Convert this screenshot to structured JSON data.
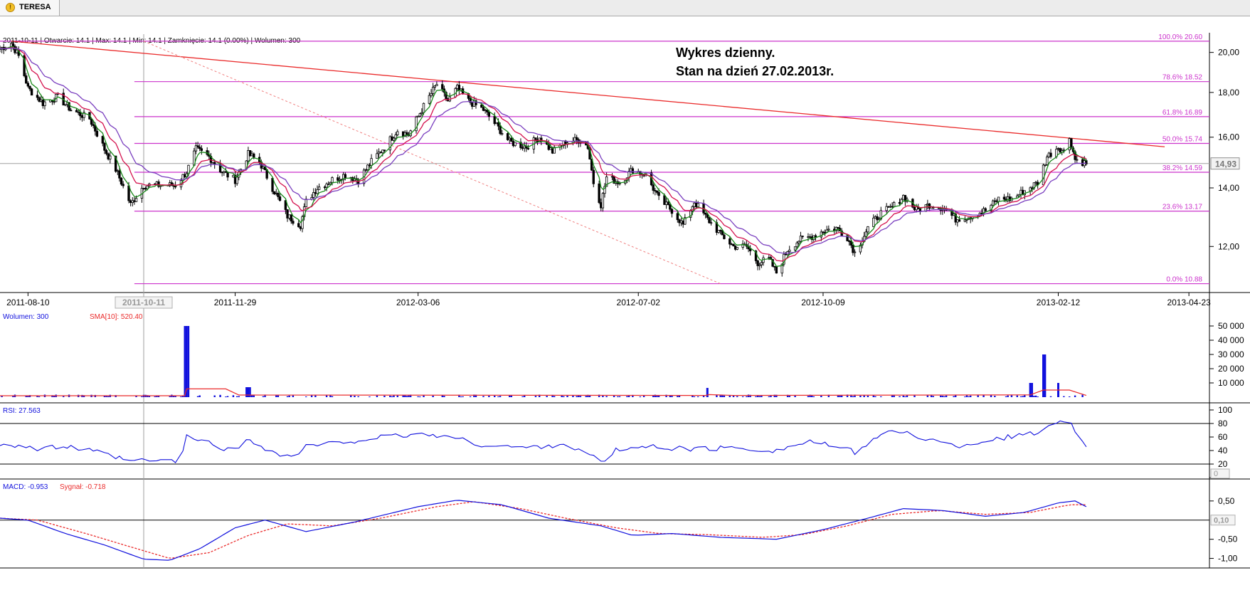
{
  "app": {
    "tab_title": "TERESA",
    "tab_icon": "warning-icon",
    "colors": {
      "candle": "#000000",
      "ema_fast": "#1a8a1a",
      "ema_mid": "#d4124e",
      "ema_slow": "#7a3fbf",
      "fib": "#cc33cc",
      "trendline": "#ea2b2b",
      "volume": "#1010dd",
      "sma": "#ea2b2b",
      "rsi": "#1010dd",
      "macd": "#1010dd",
      "signal": "#ea2b2b"
    }
  },
  "annotation": {
    "line1": "Wykres dzienny.",
    "line2": "Stan na dzień 27.02.2013r."
  },
  "chart_data": [
    {
      "type": "candlestick",
      "panel": "price",
      "info_line": "2011-10-11 | Otwarcie: 14.1 | Max: 14.1 | Min: 14.1 | Zamknięcie: 14.1 (0.00%) | Wolumen: 300",
      "x_start": "2011-07-26",
      "x_end": "2013-05-04",
      "x_tick_labels": [
        "2011-08-10",
        "2011-11-29",
        "2012-03-06",
        "2012-07-02",
        "2012-10-09",
        "2013-02-12",
        "2013-04-23"
      ],
      "crosshair_date_label": "2011-10-11",
      "y_scale": "log",
      "ylim": [
        10.75,
        20.75
      ],
      "y_tick_labels": [
        "20,00",
        "18,00",
        "16,00",
        "14,00",
        "12,00"
      ],
      "last_price_label": "14,93",
      "fibonacci": [
        {
          "label": "100.0% 20.60",
          "value": 20.6
        },
        {
          "label": "78.6% 18.52",
          "value": 18.52
        },
        {
          "label": "61.8% 16.89",
          "value": 16.89
        },
        {
          "label": "50.0% 15.74",
          "value": 15.74
        },
        {
          "label": "38.2% 14.59",
          "value": 14.59
        },
        {
          "label": "23.6% 13.17",
          "value": 13.17
        },
        {
          "label": "0.0% 10.88",
          "value": 10.88
        }
      ],
      "trendline": {
        "from": [
          "2011-08-01",
          20.6
        ],
        "to": [
          "2013-04-10",
          15.6
        ]
      },
      "dashed_line": {
        "from": [
          "2011-10-11",
          20.6
        ],
        "to": [
          "2012-08-15",
          10.88
        ]
      },
      "close_anchors": [
        [
          "2011-07-26",
          20.2
        ],
        [
          "2011-08-01",
          20.5
        ],
        [
          "2011-08-05",
          19.8
        ],
        [
          "2011-08-10",
          18.2
        ],
        [
          "2011-08-18",
          17.5
        ],
        [
          "2011-08-26",
          17.8
        ],
        [
          "2011-09-02",
          17.2
        ],
        [
          "2011-09-12",
          16.8
        ],
        [
          "2011-09-20",
          15.5
        ],
        [
          "2011-09-26",
          14.7
        ],
        [
          "2011-10-04",
          13.4
        ],
        [
          "2011-10-11",
          14.1
        ],
        [
          "2011-10-20",
          14.1
        ],
        [
          "2011-10-28",
          14.1
        ],
        [
          "2011-11-03",
          14.6
        ],
        [
          "2011-11-08",
          15.5
        ],
        [
          "2011-11-15",
          15.2
        ],
        [
          "2011-11-22",
          14.6
        ],
        [
          "2011-11-29",
          14.3
        ],
        [
          "2011-12-06",
          15.3
        ],
        [
          "2011-12-12",
          15.0
        ],
        [
          "2011-12-19",
          14.0
        ],
        [
          "2011-12-27",
          13.0
        ],
        [
          "2012-01-03",
          12.7
        ],
        [
          "2012-01-06",
          13.5
        ],
        [
          "2012-01-12",
          14.0
        ],
        [
          "2012-01-20",
          14.3
        ],
        [
          "2012-01-27",
          14.5
        ],
        [
          "2012-02-03",
          14.3
        ],
        [
          "2012-02-10",
          15.0
        ],
        [
          "2012-02-17",
          15.6
        ],
        [
          "2012-02-24",
          16.3
        ],
        [
          "2012-03-01",
          16.1
        ],
        [
          "2012-03-06",
          16.9
        ],
        [
          "2012-03-12",
          17.8
        ],
        [
          "2012-03-16",
          18.4
        ],
        [
          "2012-03-22",
          17.6
        ],
        [
          "2012-03-27",
          18.2
        ],
        [
          "2012-04-02",
          17.6
        ],
        [
          "2012-04-10",
          17.2
        ],
        [
          "2012-04-16",
          16.6
        ],
        [
          "2012-04-24",
          15.8
        ],
        [
          "2012-05-03",
          15.6
        ],
        [
          "2012-05-10",
          16.0
        ],
        [
          "2012-05-17",
          15.4
        ],
        [
          "2012-05-24",
          15.8
        ],
        [
          "2012-06-01",
          15.9
        ],
        [
          "2012-06-05",
          15.6
        ],
        [
          "2012-06-08",
          14.2
        ],
        [
          "2012-06-12",
          13.4
        ],
        [
          "2012-06-15",
          14.4
        ],
        [
          "2012-06-22",
          14.2
        ],
        [
          "2012-06-29",
          14.7
        ],
        [
          "2012-07-06",
          14.5
        ],
        [
          "2012-07-13",
          13.6
        ],
        [
          "2012-07-20",
          13.2
        ],
        [
          "2012-07-26",
          12.7
        ],
        [
          "2012-08-01",
          13.5
        ],
        [
          "2012-08-08",
          12.9
        ],
        [
          "2012-08-15",
          12.4
        ],
        [
          "2012-08-22",
          12.0
        ],
        [
          "2012-08-29",
          12.0
        ],
        [
          "2012-09-04",
          11.5
        ],
        [
          "2012-09-10",
          11.6
        ],
        [
          "2012-09-14",
          11.2
        ],
        [
          "2012-09-20",
          11.9
        ],
        [
          "2012-09-26",
          12.2
        ],
        [
          "2012-10-02",
          12.3
        ],
        [
          "2012-10-09",
          12.5
        ],
        [
          "2012-10-16",
          12.6
        ],
        [
          "2012-10-22",
          12.3
        ],
        [
          "2012-10-26",
          11.8
        ],
        [
          "2012-11-02",
          12.6
        ],
        [
          "2012-11-09",
          13.1
        ],
        [
          "2012-11-15",
          13.3
        ],
        [
          "2012-11-21",
          13.7
        ],
        [
          "2012-11-28",
          13.2
        ],
        [
          "2012-12-05",
          13.4
        ],
        [
          "2012-12-12",
          13.3
        ],
        [
          "2012-12-19",
          12.9
        ],
        [
          "2012-12-27",
          13.0
        ],
        [
          "2013-01-04",
          13.2
        ],
        [
          "2013-01-11",
          13.6
        ],
        [
          "2013-01-18",
          13.6
        ],
        [
          "2013-01-25",
          13.9
        ],
        [
          "2013-02-01",
          14.2
        ],
        [
          "2013-02-06",
          15.2
        ],
        [
          "2013-02-12",
          15.6
        ],
        [
          "2013-02-15",
          15.4
        ],
        [
          "2013-02-18",
          16.0
        ],
        [
          "2013-02-21",
          15.1
        ],
        [
          "2013-02-27",
          14.93
        ]
      ]
    },
    {
      "type": "bar",
      "panel": "volume",
      "legend": {
        "volume": "Wolumen: 300",
        "sma": "SMA[10]: 520.40"
      },
      "ylim": [
        0,
        55000
      ],
      "y_tick_labels": [
        "50 000",
        "40 000",
        "30 000",
        "20 000",
        "10 000"
      ],
      "baseline": 900,
      "spikes": [
        [
          "2011-11-03",
          50000
        ],
        [
          "2011-12-06",
          7000
        ],
        [
          "2012-08-08",
          6500
        ],
        [
          "2013-01-28",
          10000
        ],
        [
          "2013-02-04",
          30000
        ],
        [
          "2013-02-12",
          10000
        ]
      ],
      "sma_anchors": [
        [
          "2011-07-26",
          1000
        ],
        [
          "2011-11-02",
          1000
        ],
        [
          "2011-11-03",
          5800
        ],
        [
          "2011-11-24",
          5800
        ],
        [
          "2011-12-01",
          1500
        ],
        [
          "2012-08-07",
          1200
        ],
        [
          "2012-08-09",
          1800
        ],
        [
          "2012-08-22",
          1200
        ],
        [
          "2013-01-28",
          1600
        ],
        [
          "2013-02-04",
          5000
        ],
        [
          "2013-02-18",
          5000
        ],
        [
          "2013-02-27",
          1200
        ]
      ]
    },
    {
      "type": "line",
      "panel": "rsi",
      "legend": "RSI: 27.563",
      "ylim": [
        0,
        100
      ],
      "y_tick_labels": [
        "100",
        "80",
        "60",
        "40",
        "20",
        "0"
      ],
      "levels": [
        80,
        20
      ],
      "anchors": [
        [
          "2011-07-26",
          50
        ],
        [
          "2011-08-05",
          48
        ],
        [
          "2011-08-15",
          42
        ],
        [
          "2011-08-30",
          46
        ],
        [
          "2011-09-15",
          38
        ],
        [
          "2011-10-04",
          24
        ],
        [
          "2011-10-11",
          25
        ],
        [
          "2011-10-31",
          25
        ],
        [
          "2011-11-03",
          60
        ],
        [
          "2011-11-10",
          56
        ],
        [
          "2011-11-22",
          44
        ],
        [
          "2011-11-29",
          40
        ],
        [
          "2011-12-06",
          58
        ],
        [
          "2011-12-20",
          36
        ],
        [
          "2011-12-30",
          30
        ],
        [
          "2012-01-06",
          46
        ],
        [
          "2012-01-25",
          52
        ],
        [
          "2012-02-10",
          58
        ],
        [
          "2012-03-06",
          64
        ],
        [
          "2012-03-20",
          62
        ],
        [
          "2012-04-10",
          48
        ],
        [
          "2012-05-03",
          44
        ],
        [
          "2012-05-24",
          50
        ],
        [
          "2012-06-08",
          30
        ],
        [
          "2012-06-12",
          22
        ],
        [
          "2012-06-20",
          40
        ],
        [
          "2012-07-06",
          46
        ],
        [
          "2012-08-01",
          42
        ],
        [
          "2012-08-22",
          44
        ],
        [
          "2012-09-14",
          40
        ],
        [
          "2012-10-02",
          54
        ],
        [
          "2012-10-26",
          38
        ],
        [
          "2012-11-09",
          64
        ],
        [
          "2012-11-21",
          68
        ],
        [
          "2012-12-05",
          56
        ],
        [
          "2012-12-19",
          46
        ],
        [
          "2013-01-11",
          58
        ],
        [
          "2013-02-01",
          66
        ],
        [
          "2013-02-12",
          86
        ],
        [
          "2013-02-18",
          84
        ],
        [
          "2013-02-22",
          60
        ],
        [
          "2013-02-27",
          48
        ]
      ]
    },
    {
      "type": "line",
      "panel": "macd",
      "legend": {
        "macd": "MACD: -0.953",
        "signal": "Sygnał: -0.718"
      },
      "ylim": [
        -1.25,
        0.85
      ],
      "y_tick_labels": [
        "0,50",
        "-0,50",
        "-1,00"
      ],
      "value_box": "0,10",
      "zero_line": 0,
      "macd_anchors": [
        [
          "2011-07-26",
          0.05
        ],
        [
          "2011-08-10",
          0.0
        ],
        [
          "2011-08-30",
          -0.35
        ],
        [
          "2011-09-20",
          -0.65
        ],
        [
          "2011-10-11",
          -1.02
        ],
        [
          "2011-10-25",
          -1.05
        ],
        [
          "2011-11-10",
          -0.75
        ],
        [
          "2011-11-29",
          -0.2
        ],
        [
          "2011-12-15",
          0.0
        ],
        [
          "2012-01-06",
          -0.3
        ],
        [
          "2012-02-01",
          -0.05
        ],
        [
          "2012-03-06",
          0.35
        ],
        [
          "2012-03-27",
          0.52
        ],
        [
          "2012-04-20",
          0.4
        ],
        [
          "2012-05-15",
          0.05
        ],
        [
          "2012-06-12",
          -0.15
        ],
        [
          "2012-06-29",
          -0.4
        ],
        [
          "2012-07-20",
          -0.35
        ],
        [
          "2012-08-15",
          -0.45
        ],
        [
          "2012-09-14",
          -0.5
        ],
        [
          "2012-10-09",
          -0.25
        ],
        [
          "2012-11-02",
          0.05
        ],
        [
          "2012-11-21",
          0.3
        ],
        [
          "2012-12-12",
          0.25
        ],
        [
          "2013-01-04",
          0.1
        ],
        [
          "2013-01-25",
          0.2
        ],
        [
          "2013-02-12",
          0.45
        ],
        [
          "2013-02-21",
          0.5
        ],
        [
          "2013-02-27",
          0.35
        ]
      ],
      "signal_anchors": [
        [
          "2011-07-26",
          0.05
        ],
        [
          "2011-08-15",
          0.0
        ],
        [
          "2011-09-10",
          -0.35
        ],
        [
          "2011-10-04",
          -0.7
        ],
        [
          "2011-10-25",
          -1.0
        ],
        [
          "2011-11-15",
          -0.85
        ],
        [
          "2011-12-06",
          -0.4
        ],
        [
          "2011-12-27",
          -0.1
        ],
        [
          "2012-01-20",
          -0.15
        ],
        [
          "2012-02-15",
          0.05
        ],
        [
          "2012-03-16",
          0.35
        ],
        [
          "2012-04-05",
          0.48
        ],
        [
          "2012-04-30",
          0.3
        ],
        [
          "2012-05-24",
          0.05
        ],
        [
          "2012-06-20",
          -0.2
        ],
        [
          "2012-07-13",
          -0.35
        ],
        [
          "2012-08-08",
          -0.38
        ],
        [
          "2012-09-07",
          -0.45
        ],
        [
          "2012-09-28",
          -0.38
        ],
        [
          "2012-10-22",
          -0.15
        ],
        [
          "2012-11-15",
          0.15
        ],
        [
          "2012-12-10",
          0.25
        ],
        [
          "2013-01-04",
          0.15
        ],
        [
          "2013-01-28",
          0.2
        ],
        [
          "2013-02-18",
          0.4
        ],
        [
          "2013-02-27",
          0.4
        ]
      ]
    }
  ]
}
